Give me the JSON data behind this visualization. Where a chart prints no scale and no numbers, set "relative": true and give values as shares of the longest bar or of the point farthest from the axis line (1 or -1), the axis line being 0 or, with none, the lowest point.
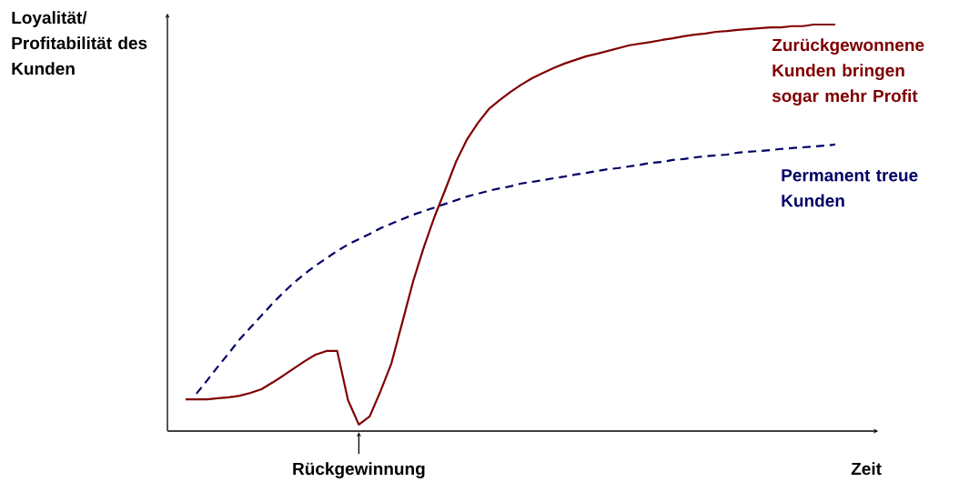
{
  "chart_data": {
    "type": "line",
    "relative": true,
    "ylabel": "Loyalität/ Profitabilität des Kunden",
    "xlabel": "Zeit",
    "annotations": [
      "Rückgewinnung"
    ],
    "categories": [
      null,
      null,
      null,
      null,
      null,
      null,
      null,
      null,
      null,
      null,
      null,
      null,
      null,
      null,
      null,
      null,
      null,
      null,
      null,
      null,
      null,
      null,
      null,
      null,
      null,
      null,
      null,
      null,
      null,
      null,
      null,
      null,
      null,
      null,
      null,
      null,
      null,
      null,
      null,
      null,
      null,
      null,
      null,
      null,
      null,
      null,
      null,
      null,
      null,
      null,
      null,
      null,
      null,
      null,
      null,
      null,
      null,
      null,
      null,
      null,
      null
    ],
    "series": [
      {
        "name": "Zurückgewonnene Kunden bringen sogar mehr Profit",
        "color": "#800000",
        "line_style": "solid",
        "values": [
          0.078,
          0.078,
          0.078,
          0.081,
          0.083,
          0.087,
          0.094,
          0.103,
          0.119,
          0.136,
          0.154,
          0.172,
          0.188,
          0.197,
          0.197,
          0.076,
          0.016,
          0.036,
          0.098,
          0.166,
          0.266,
          0.367,
          0.452,
          0.528,
          0.595,
          0.664,
          0.718,
          0.758,
          0.792,
          0.814,
          0.834,
          0.852,
          0.868,
          0.881,
          0.893,
          0.904,
          0.913,
          0.922,
          0.928,
          0.935,
          0.942,
          0.949,
          0.953,
          0.957,
          0.962,
          0.966,
          0.971,
          0.975,
          0.978,
          0.982,
          0.984,
          0.987,
          0.989,
          0.991,
          0.993,
          0.993,
          0.996,
          0.996,
          1.0,
          1.0,
          1.0
        ]
      },
      {
        "name": "Permanent treue Kunden",
        "color": "#000066",
        "line_style": "dashed",
        "values": [
          null,
          0.092,
          0.125,
          0.159,
          0.192,
          0.226,
          0.255,
          0.284,
          0.313,
          0.34,
          0.365,
          0.387,
          0.407,
          0.425,
          0.443,
          0.459,
          0.472,
          0.485,
          0.499,
          0.51,
          0.521,
          0.532,
          0.541,
          0.55,
          0.559,
          0.568,
          0.577,
          0.584,
          0.591,
          0.597,
          0.602,
          0.609,
          0.613,
          0.617,
          0.622,
          0.626,
          0.631,
          0.635,
          0.64,
          0.644,
          0.647,
          0.651,
          0.655,
          0.66,
          0.662,
          0.667,
          0.669,
          0.673,
          0.676,
          0.678,
          0.68,
          0.685,
          0.687,
          0.689,
          0.691,
          0.694,
          0.696,
          0.698,
          0.7,
          0.702,
          0.705
        ]
      }
    ]
  }
}
